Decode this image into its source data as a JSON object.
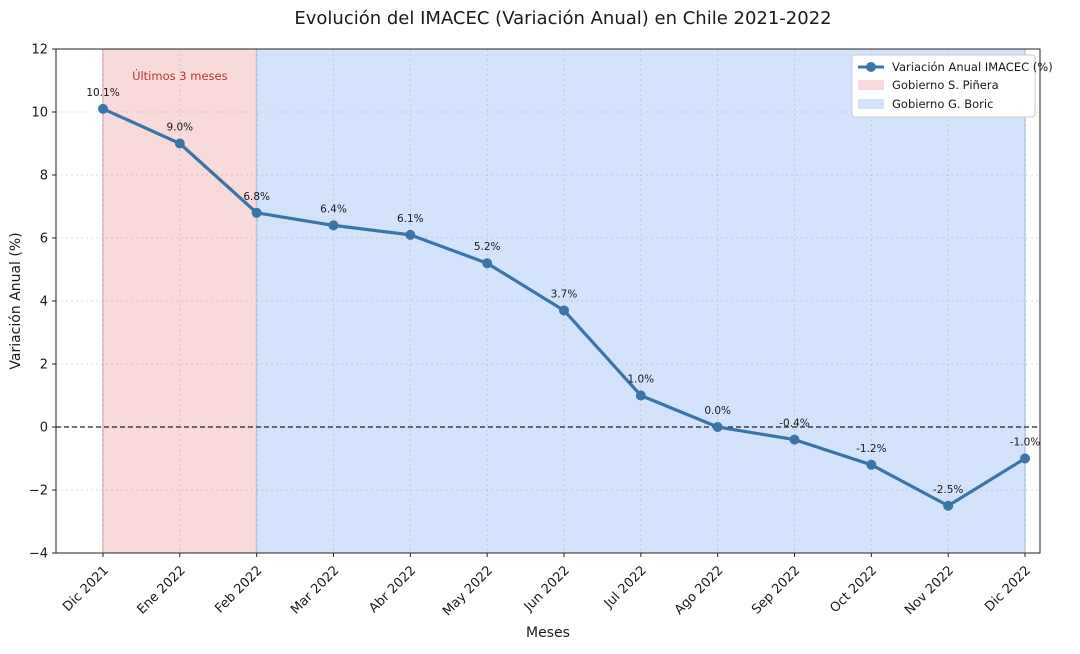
{
  "chart_data": {
    "type": "line",
    "title": "Evolución del IMACEC (Variación Anual) en Chile 2021-2022",
    "xlabel": "Meses",
    "ylabel": "Variación Anual (%)",
    "ylim": [
      -4,
      12
    ],
    "yticks": [
      -4,
      -2,
      0,
      2,
      4,
      6,
      8,
      10,
      12
    ],
    "categories": [
      "Dic 2021",
      "Ene 2022",
      "Feb 2022",
      "Mar 2022",
      "Abr 2022",
      "May 2022",
      "Jun 2022",
      "Jul 2022",
      "Ago 2022",
      "Sep 2022",
      "Oct 2022",
      "Nov 2022",
      "Dic 2022"
    ],
    "series": [
      {
        "name": "Variación Anual IMACEC (%)",
        "values": [
          10.1,
          9.0,
          6.8,
          6.4,
          6.1,
          5.2,
          3.7,
          1.0,
          0.0,
          -0.4,
          -1.2,
          -2.5,
          -1.0
        ],
        "data_labels": [
          "10.1%",
          "9.0%",
          "6.8%",
          "6.4%",
          "6.1%",
          "5.2%",
          "3.7%",
          "1.0%",
          "0.0%",
          "-0.4%",
          "-1.2%",
          "-2.5%",
          "-1.0%"
        ],
        "color": "#3b75a8"
      }
    ],
    "shaded_regions": [
      {
        "name": "Gobierno S. Piñera",
        "from": "Dic 2021",
        "to": "Feb 2022",
        "color": "#f8dada"
      },
      {
        "name": "Gobierno G. Boric",
        "from": "Feb 2022",
        "to": "Dic 2022",
        "color": "#d3e3fb"
      }
    ],
    "annotation": {
      "text": "Últimos 3 meses",
      "color": "#b03a2e"
    },
    "reference_line": {
      "y": 0,
      "style": "dashed"
    },
    "legend_position": "top-right",
    "grid": true
  }
}
